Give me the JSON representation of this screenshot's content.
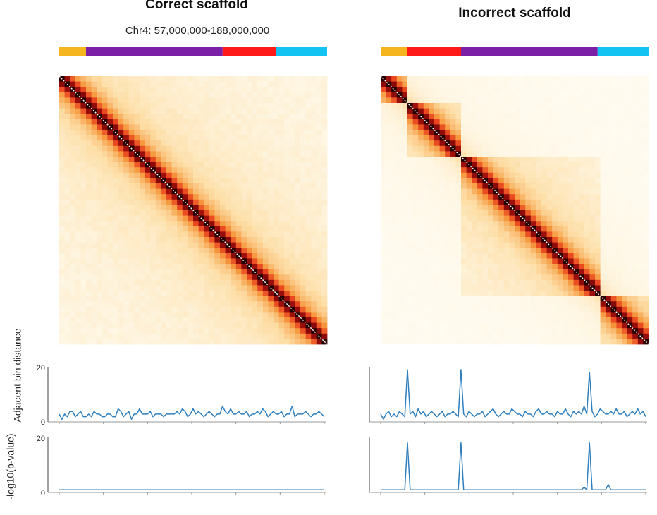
{
  "panels": [
    {
      "title": "Correct scaffold",
      "subtitle": "Chr4: 57,000,000-188,000,000",
      "segment_colors": [
        "#f5b51e",
        "#7a1fa6",
        "#ff1a1a",
        "#13c3f2"
      ],
      "segment_fractions": [
        0.1,
        0.51,
        0.2,
        0.19
      ],
      "heatmap_blocks": "single",
      "adjacent": [
        3,
        1,
        3,
        2,
        4,
        4,
        2,
        3,
        4,
        2,
        2,
        3,
        2,
        4,
        3,
        3,
        2,
        2,
        3,
        3,
        2,
        2,
        5,
        4,
        2,
        3,
        4,
        1,
        3,
        3,
        5,
        3,
        3,
        3,
        4,
        2,
        3,
        3,
        3,
        2,
        3,
        3,
        3,
        3,
        4,
        3,
        5,
        4,
        2,
        3,
        5,
        3,
        4,
        3,
        2,
        3,
        4,
        3,
        2,
        3,
        3,
        6,
        4,
        3,
        5,
        3,
        3,
        4,
        3,
        3,
        4,
        2,
        3,
        3,
        4,
        3,
        5,
        4,
        2,
        3,
        4,
        3,
        3,
        4,
        2,
        3,
        3,
        6,
        2,
        3,
        3,
        3,
        4,
        3,
        2,
        3,
        3,
        4,
        3,
        2
      ],
      "pvalue": [
        1,
        1,
        1,
        1,
        1,
        1,
        1,
        1,
        1,
        1,
        1,
        1,
        1,
        1,
        1,
        1,
        1,
        1,
        1,
        1,
        1,
        1,
        1,
        1,
        1,
        1,
        1,
        1,
        1,
        1,
        1,
        1,
        1,
        1,
        1,
        1,
        1,
        1,
        1,
        1,
        1,
        1,
        1,
        1,
        1,
        1,
        1,
        1,
        1,
        1,
        1,
        1,
        1,
        1,
        1,
        1,
        1,
        1,
        1,
        1,
        1,
        1,
        1,
        1,
        1,
        1,
        1,
        1,
        1,
        1,
        1,
        1,
        1,
        1,
        1,
        1,
        1,
        1,
        1,
        1,
        1,
        1,
        1,
        1,
        1,
        1,
        1,
        1,
        1,
        1,
        1,
        1,
        1,
        1,
        1,
        1,
        1,
        1,
        1,
        1
      ]
    },
    {
      "title": "Incorrect scaffold",
      "subtitle": "",
      "segment_colors": [
        "#f5b51e",
        "#ff1a1a",
        "#7a1fa6",
        "#13c3f2"
      ],
      "segment_fractions": [
        0.1,
        0.2,
        0.51,
        0.19
      ],
      "heatmap_blocks": "blocks",
      "adjacent": [
        3,
        1,
        3,
        4,
        2,
        3,
        2,
        4,
        3,
        2,
        20,
        3,
        4,
        2,
        5,
        3,
        4,
        2,
        3,
        4,
        3,
        2,
        3,
        4,
        2,
        3,
        3,
        4,
        3,
        2,
        20,
        3,
        2,
        4,
        3,
        2,
        3,
        3,
        4,
        2,
        3,
        4,
        5,
        3,
        2,
        3,
        4,
        3,
        3,
        5,
        4,
        3,
        3,
        2,
        4,
        3,
        3,
        2,
        4,
        5,
        3,
        3,
        4,
        3,
        3,
        2,
        4,
        3,
        3,
        5,
        3,
        2,
        4,
        3,
        4,
        3,
        6,
        3,
        19,
        4,
        2,
        3,
        5,
        4,
        3,
        3,
        4,
        3,
        5,
        3,
        3,
        4,
        2,
        3,
        4,
        3,
        5,
        3,
        4,
        2
      ],
      "pvalue": [
        1,
        1,
        1,
        1,
        1,
        1,
        1,
        1,
        1,
        1,
        19,
        1,
        1,
        1,
        1,
        1,
        1,
        1,
        1,
        1,
        1,
        1,
        1,
        1,
        1,
        1,
        1,
        1,
        1,
        1,
        19,
        1,
        1,
        1,
        1,
        1,
        1,
        1,
        1,
        1,
        1,
        1,
        1,
        1,
        1,
        1,
        1,
        1,
        1,
        1,
        1,
        1,
        1,
        1,
        1,
        1,
        1,
        1,
        1,
        1,
        1,
        1,
        1,
        1,
        1,
        1,
        1,
        1,
        1,
        1,
        1,
        1,
        1,
        1,
        1,
        1,
        2,
        1,
        19,
        1,
        1,
        1,
        1,
        1,
        1,
        3,
        1,
        1,
        1,
        1,
        1,
        1,
        1,
        1,
        1,
        1,
        1,
        1,
        1,
        1
      ]
    }
  ],
  "ylabels": {
    "adjacent": "Adjacent bin distance",
    "pvalue": "-log10(p-value)"
  },
  "ticks": {
    "top": "20",
    "bottom": "0"
  },
  "chart_data": [
    {
      "type": "line",
      "title": "Correct scaffold - Adjacent bin distance",
      "ylabel": "Adjacent bin distance",
      "ylim": [
        0,
        20
      ]
    },
    {
      "type": "line",
      "title": "Incorrect scaffold - Adjacent bin distance",
      "ylabel": "Adjacent bin distance",
      "ylim": [
        0,
        20
      ]
    },
    {
      "type": "line",
      "title": "Correct scaffold - -log10(p-value)",
      "ylabel": "-log10(p-value)",
      "ylim": [
        0,
        20
      ]
    },
    {
      "type": "line",
      "title": "Incorrect scaffold - -log10(p-value)",
      "ylabel": "-log10(p-value)",
      "ylim": [
        0,
        20
      ]
    }
  ]
}
